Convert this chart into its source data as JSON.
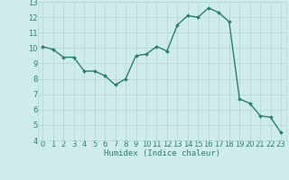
{
  "x": [
    0,
    1,
    2,
    3,
    4,
    5,
    6,
    7,
    8,
    9,
    10,
    11,
    12,
    13,
    14,
    15,
    16,
    17,
    18,
    19,
    20,
    21,
    22,
    23
  ],
  "y": [
    10.1,
    9.9,
    9.4,
    9.4,
    8.5,
    8.5,
    8.2,
    7.6,
    8.0,
    9.5,
    9.6,
    10.1,
    9.8,
    11.5,
    12.1,
    12.0,
    12.6,
    12.3,
    11.7,
    6.7,
    6.4,
    5.6,
    5.5,
    4.5
  ],
  "line_color": "#2e7d72",
  "marker": "D",
  "marker_size": 2.0,
  "bg_color": "#ceecea",
  "grid_major_color": "#b8d8d5",
  "grid_minor_color": "#daecea",
  "tick_color": "#2e7d72",
  "xlabel": "Humidex (Indice chaleur)",
  "ylim": [
    4,
    13
  ],
  "xlim": [
    -0.5,
    23.5
  ],
  "yticks": [
    4,
    5,
    6,
    7,
    8,
    9,
    10,
    11,
    12,
    13
  ],
  "xticks": [
    0,
    1,
    2,
    3,
    4,
    5,
    6,
    7,
    8,
    9,
    10,
    11,
    12,
    13,
    14,
    15,
    16,
    17,
    18,
    19,
    20,
    21,
    22,
    23
  ],
  "xlabel_fontsize": 6.5,
  "tick_fontsize": 6.0,
  "line_width": 1.0
}
